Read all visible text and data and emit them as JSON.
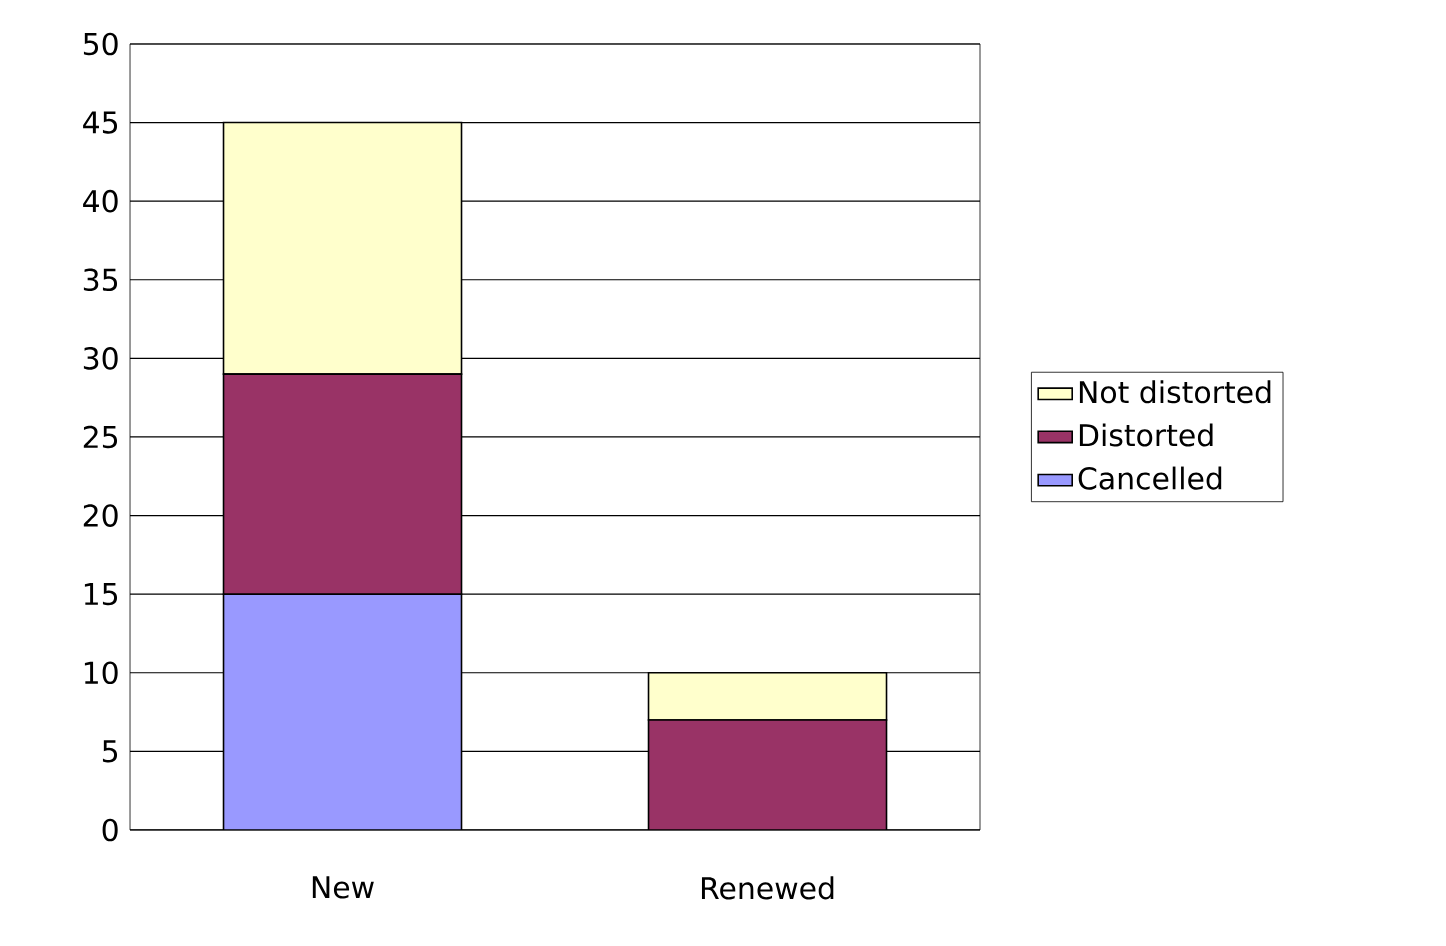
{
  "chart_data": {
    "type": "bar",
    "stacked": true,
    "categories": [
      "New",
      "Renewed"
    ],
    "series": [
      {
        "name": "Cancelled",
        "color": "#9999ff",
        "values": [
          15,
          0
        ]
      },
      {
        "name": "Distorted",
        "color": "#993366",
        "values": [
          14,
          7
        ]
      },
      {
        "name": "Not distorted",
        "color": "#ffffcc",
        "values": [
          16,
          3
        ]
      }
    ],
    "ylim": [
      0,
      50
    ],
    "yticks": [
      0,
      5,
      10,
      15,
      20,
      25,
      30,
      35,
      40,
      45,
      50
    ],
    "grid": "y",
    "legend": "right"
  }
}
